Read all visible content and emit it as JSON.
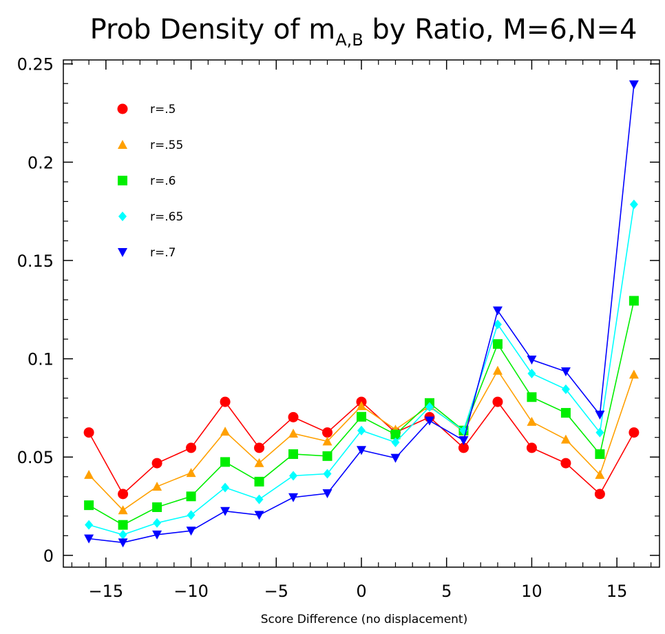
{
  "chart_data": {
    "type": "line",
    "title": "Prob Density of m",
    "title_subscript": "A,B",
    "title_suffix": " by Ratio, M=6,N=4",
    "xlabel": "Score Difference (no displacement)",
    "ylabel": "",
    "xlim": [
      -17.5,
      17.5
    ],
    "ylim": [
      -0.006,
      0.252
    ],
    "xticks": [
      -15,
      -10,
      -5,
      0,
      5,
      10,
      15
    ],
    "xtick_labels": [
      "−15",
      "−10",
      "−5",
      "0",
      "5",
      "10",
      "15"
    ],
    "yticks": [
      0,
      0.05,
      0.1,
      0.15,
      0.2,
      0.25
    ],
    "ytick_labels": [
      "0",
      "0.05",
      "0.1",
      "0.15",
      "0.2",
      "0.25"
    ],
    "grid": false,
    "legend_position": "top-left",
    "x": [
      -16,
      -14,
      -12,
      -10,
      -8,
      -6,
      -4,
      -2,
      0,
      2,
      4,
      6,
      8,
      10,
      12,
      14,
      16
    ],
    "series": [
      {
        "name": "r=.5",
        "color": "#ff0000",
        "marker": "circle",
        "values": [
          0.0625,
          0.0312,
          0.0469,
          0.0547,
          0.0781,
          0.0547,
          0.0703,
          0.0625,
          0.0781,
          0.0625,
          0.0703,
          0.0547,
          0.0781,
          0.0547,
          0.0469,
          0.0312,
          0.0625
        ]
      },
      {
        "name": "r=.55",
        "color": "#ffa000",
        "marker": "triangle-up",
        "values": [
          0.041,
          0.023,
          0.035,
          0.042,
          0.063,
          0.047,
          0.062,
          0.058,
          0.076,
          0.064,
          0.076,
          0.063,
          0.094,
          0.068,
          0.059,
          0.041,
          0.092
        ]
      },
      {
        "name": "r=.6",
        "color": "#00ee00",
        "marker": "square",
        "values": [
          0.0255,
          0.0155,
          0.0245,
          0.03,
          0.0475,
          0.0375,
          0.0515,
          0.0505,
          0.0705,
          0.0615,
          0.0775,
          0.0635,
          0.1075,
          0.0805,
          0.0725,
          0.0515,
          0.1295
        ]
      },
      {
        "name": "r=.65",
        "color": "#00ffff",
        "marker": "diamond",
        "values": [
          0.0155,
          0.0105,
          0.0165,
          0.0205,
          0.0345,
          0.0285,
          0.0405,
          0.0415,
          0.0635,
          0.0575,
          0.0755,
          0.0635,
          0.1175,
          0.0925,
          0.0845,
          0.0625,
          0.1785
        ]
      },
      {
        "name": "r=.7",
        "color": "#0000ff",
        "marker": "triangle-down",
        "values": [
          0.0085,
          0.0065,
          0.0105,
          0.0125,
          0.0225,
          0.0205,
          0.0295,
          0.0315,
          0.0535,
          0.0495,
          0.0685,
          0.0585,
          0.1245,
          0.0995,
          0.0935,
          0.0715,
          0.2395
        ]
      }
    ]
  }
}
